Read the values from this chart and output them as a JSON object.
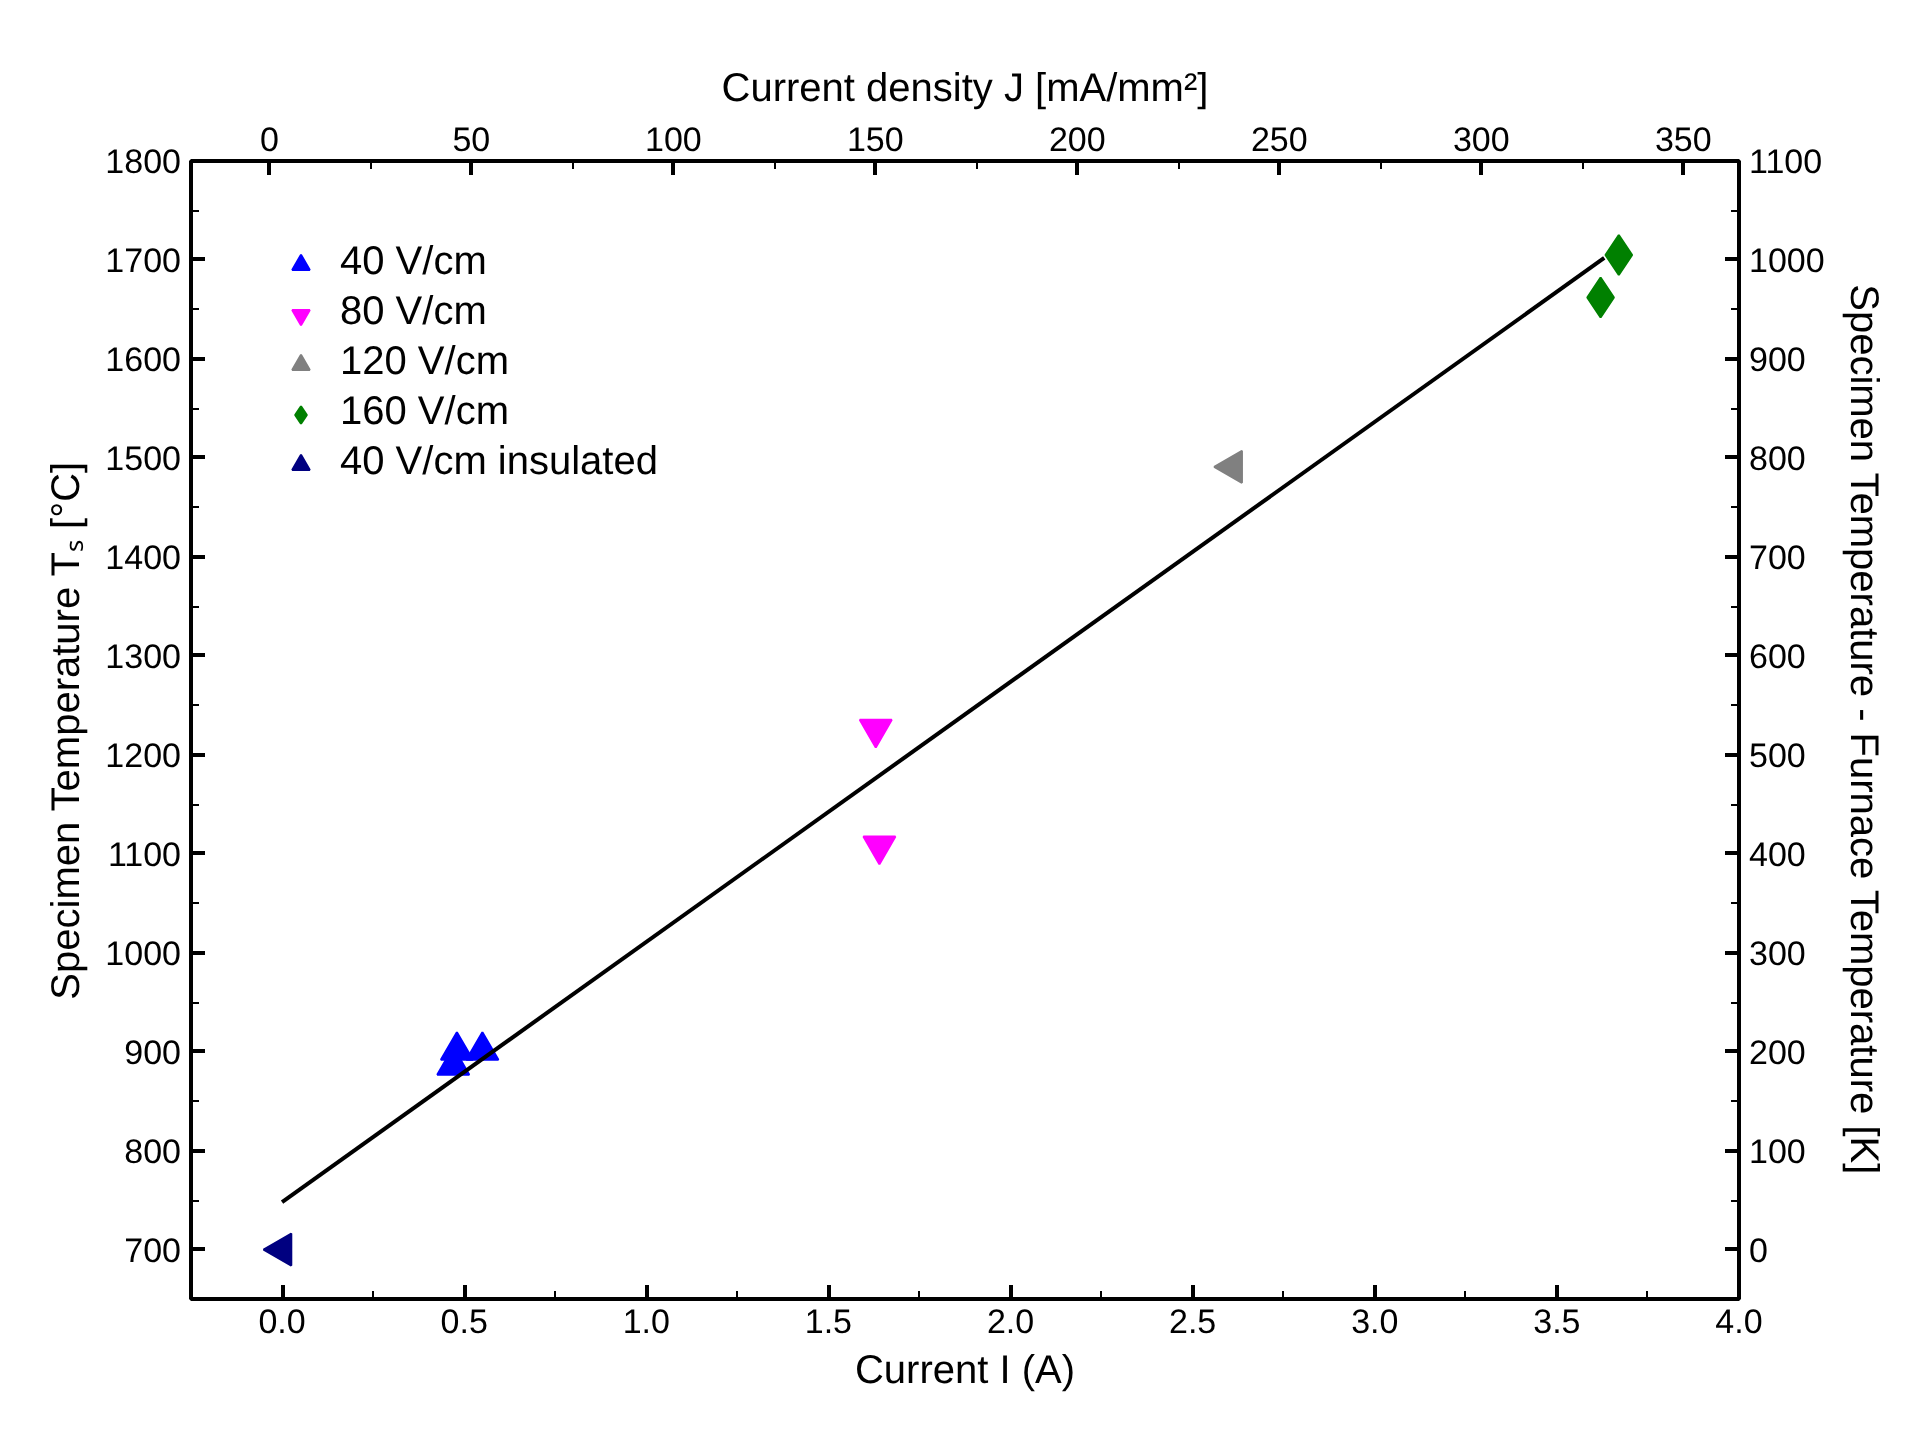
{
  "chart_data": {
    "type": "scatter",
    "xlabel": "Current I (A)",
    "ylabel": "Specimen Temperature Tₛ [°C]",
    "y2label": "Specimen Temperature - Furnace Temperature [K]",
    "x2label": "Current density J [mA/mm²]",
    "xlim": [
      -0.25,
      4.0
    ],
    "xticks": [
      {
        "value": 0,
        "label": "0.0"
      },
      {
        "value": 0.5,
        "label": "0.5"
      },
      {
        "value": 1,
        "label": "1.0"
      },
      {
        "value": 1.5,
        "label": "1.5"
      },
      {
        "value": 2,
        "label": "2.0"
      },
      {
        "value": 2.5,
        "label": "2.5"
      },
      {
        "value": 3,
        "label": "3.0"
      },
      {
        "value": 3.5,
        "label": "3.5"
      },
      {
        "value": 4,
        "label": "4.0"
      }
    ],
    "ylim": [
      650,
      1800
    ],
    "yticks": [
      700,
      800,
      900,
      1000,
      1100,
      1200,
      1300,
      1400,
      1500,
      1600,
      1700,
      1800
    ],
    "y2lim": [
      -50,
      1100
    ],
    "y2ticks": [
      0,
      100,
      200,
      300,
      400,
      500,
      600,
      700,
      800,
      900,
      1000,
      1100
    ],
    "x2lim": [
      -19.4,
      363.8
    ],
    "x2ticks": [
      0,
      50,
      100,
      150,
      200,
      250,
      300,
      350
    ],
    "legend": "top left",
    "grid": false,
    "series": [
      {
        "name": "40 V/cm",
        "color": "#0000ff",
        "marker": "triangle",
        "x": [
          0.48,
          0.47,
          0.55
        ],
        "values": [
          901,
          886,
          901
        ]
      },
      {
        "name": "80 V/cm",
        "color": "#ff00ff",
        "marker": "triangle_down",
        "x": [
          1.63,
          1.64
        ],
        "values": [
          1226,
          1108
        ]
      },
      {
        "name": "120 V/cm",
        "color": "#808080",
        "marker": "triangle_left",
        "x": [
          2.61
        ],
        "values": [
          1491
        ]
      },
      {
        "name": "160 V/cm",
        "color": "#008000",
        "marker": "diamond",
        "x": [
          3.67,
          3.62
        ],
        "values": [
          1705,
          1662
        ]
      },
      {
        "name": "40 V/cm insulated",
        "color": "#000080",
        "marker": "triangle_left",
        "x": [
          0.0
        ],
        "values": [
          700
        ]
      },
      {
        "type": "line",
        "color": "#000000",
        "marker": "none",
        "line_style": "solid",
        "x": [
          0.0,
          3.63
        ],
        "values": [
          748,
          1702
        ]
      }
    ]
  }
}
